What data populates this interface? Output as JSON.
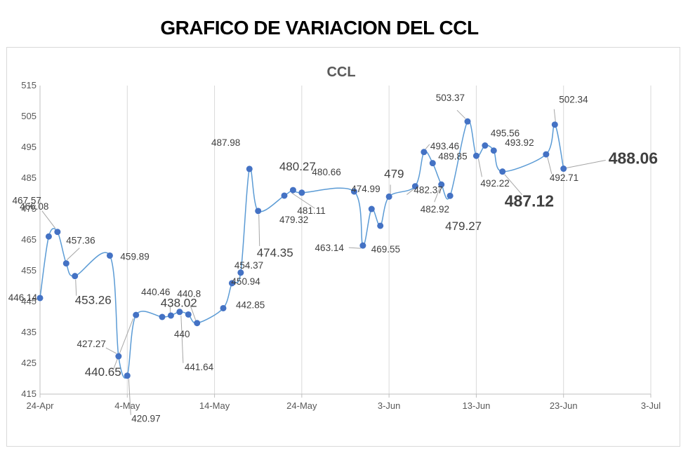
{
  "page": {
    "title": "GRAFICO DE VARIACION DEL CCL"
  },
  "chart_data": {
    "type": "line",
    "title": "CCL",
    "xlabel": "",
    "ylabel": "",
    "ylim": [
      415,
      515
    ],
    "yticks": [
      415,
      425,
      435,
      445,
      455,
      465,
      475,
      485,
      495,
      505,
      515
    ],
    "xticks": [
      {
        "date": "2023-04-24",
        "label": "24-Apr"
      },
      {
        "date": "2023-05-04",
        "label": "4-May"
      },
      {
        "date": "2023-05-14",
        "label": "14-May"
      },
      {
        "date": "2023-05-24",
        "label": "24-May"
      },
      {
        "date": "2023-06-03",
        "label": "3-Jun"
      },
      {
        "date": "2023-06-13",
        "label": "13-Jun"
      },
      {
        "date": "2023-06-23",
        "label": "23-Jun"
      },
      {
        "date": "2023-07-03",
        "label": "3-Jul"
      }
    ],
    "xlim": [
      "2023-04-24",
      "2023-07-03"
    ],
    "grid": {
      "x": true,
      "y": false
    },
    "legend": "none",
    "line_color": "#5B9BD5",
    "marker_color": "#4472C4",
    "series": [
      {
        "points": [
          {
            "x": "2023-04-24",
            "y": 446.14
          },
          {
            "x": "2023-04-25",
            "y": 466.08
          },
          {
            "x": "2023-04-26",
            "y": 467.57
          },
          {
            "x": "2023-04-27",
            "y": 457.36
          },
          {
            "x": "2023-04-28",
            "y": 453.26
          },
          {
            "x": "2023-05-02",
            "y": 459.89
          },
          {
            "x": "2023-05-03",
            "y": 427.27
          },
          {
            "x": "2023-05-04",
            "y": 420.97
          },
          {
            "x": "2023-05-05",
            "y": 440.65
          },
          {
            "x": "2023-05-08",
            "y": 440.0
          },
          {
            "x": "2023-05-09",
            "y": 440.46
          },
          {
            "x": "2023-05-10",
            "y": 441.64
          },
          {
            "x": "2023-05-11",
            "y": 440.8
          },
          {
            "x": "2023-05-12",
            "y": 438.02
          },
          {
            "x": "2023-05-15",
            "y": 442.85
          },
          {
            "x": "2023-05-16",
            "y": 450.94
          },
          {
            "x": "2023-05-17",
            "y": 454.37
          },
          {
            "x": "2023-05-18",
            "y": 487.98
          },
          {
            "x": "2023-05-19",
            "y": 474.35
          },
          {
            "x": "2023-05-22",
            "y": 479.32
          },
          {
            "x": "2023-05-23",
            "y": 481.11
          },
          {
            "x": "2023-05-24",
            "y": 480.27
          },
          {
            "x": "2023-05-30",
            "y": 480.66
          },
          {
            "x": "2023-05-31",
            "y": 463.14
          },
          {
            "x": "2023-06-01",
            "y": 474.99
          },
          {
            "x": "2023-06-02",
            "y": 469.55
          },
          {
            "x": "2023-06-03",
            "y": 479.0
          },
          {
            "x": "2023-06-06",
            "y": 482.37
          },
          {
            "x": "2023-06-07",
            "y": 493.46
          },
          {
            "x": "2023-06-08",
            "y": 489.85
          },
          {
            "x": "2023-06-09",
            "y": 482.92
          },
          {
            "x": "2023-06-10",
            "y": 479.27
          },
          {
            "x": "2023-06-12",
            "y": 503.37
          },
          {
            "x": "2023-06-13",
            "y": 492.22
          },
          {
            "x": "2023-06-14",
            "y": 495.56
          },
          {
            "x": "2023-06-15",
            "y": 493.92
          },
          {
            "x": "2023-06-16",
            "y": 487.12
          },
          {
            "x": "2023-06-21",
            "y": 492.71
          },
          {
            "x": "2023-06-22",
            "y": 502.34
          },
          {
            "x": "2023-06-23",
            "y": 488.06
          }
        ]
      }
    ],
    "data_labels": [
      {
        "text": "446.14",
        "size": "small"
      },
      {
        "text": "466.08",
        "size": "small"
      },
      {
        "text": "467.57",
        "size": "small"
      },
      {
        "text": "457.36",
        "size": "small"
      },
      {
        "text": "453.26",
        "size": "medium"
      },
      {
        "text": "459.89",
        "size": "small"
      },
      {
        "text": "427.27",
        "size": "small"
      },
      {
        "text": "420.97",
        "size": "small"
      },
      {
        "text": "440.65",
        "size": "medium"
      },
      {
        "text": "440",
        "size": "small"
      },
      {
        "text": "440.46",
        "size": "small"
      },
      {
        "text": "441.64",
        "size": "small"
      },
      {
        "text": "440.8",
        "size": "small"
      },
      {
        "text": "438.02",
        "size": "medium"
      },
      {
        "text": "442.85",
        "size": "small"
      },
      {
        "text": "450.94",
        "size": "small"
      },
      {
        "text": "454.37",
        "size": "small"
      },
      {
        "text": "487.98",
        "size": "small"
      },
      {
        "text": "474.35",
        "size": "medium"
      },
      {
        "text": "479.32",
        "size": "small"
      },
      {
        "text": "481.11",
        "size": "small"
      },
      {
        "text": "480.27",
        "size": "medium"
      },
      {
        "text": "480.66",
        "size": "small"
      },
      {
        "text": "463.14",
        "size": "small"
      },
      {
        "text": "474.99",
        "size": "small"
      },
      {
        "text": "469.55",
        "size": "small"
      },
      {
        "text": "479",
        "size": "medium"
      },
      {
        "text": "482.37",
        "size": "small"
      },
      {
        "text": "493.46",
        "size": "small"
      },
      {
        "text": "489.85",
        "size": "small"
      },
      {
        "text": "482.92",
        "size": "small"
      },
      {
        "text": "479.27",
        "size": "medium"
      },
      {
        "text": "503.37",
        "size": "small"
      },
      {
        "text": "492.22",
        "size": "small"
      },
      {
        "text": "495.56",
        "size": "small"
      },
      {
        "text": "493.92",
        "size": "small"
      },
      {
        "text": "487.12",
        "size": "large"
      },
      {
        "text": "492.71",
        "size": "small"
      },
      {
        "text": "502.34",
        "size": "small"
      },
      {
        "text": "488.06",
        "size": "large"
      }
    ]
  }
}
